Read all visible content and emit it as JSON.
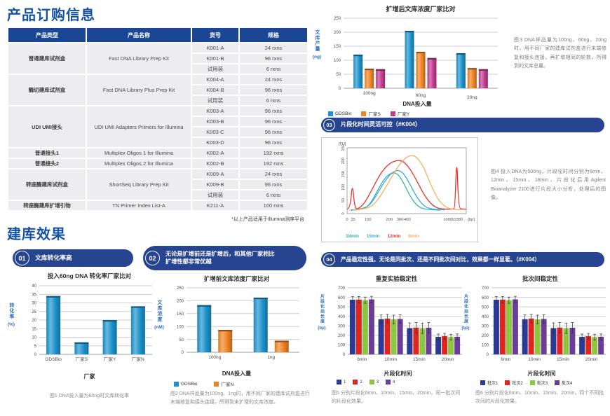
{
  "headings": {
    "ordering": "产品订购信息",
    "effect": "建库效果"
  },
  "order_table": {
    "headers": [
      "产品类型",
      "产品名称",
      "货号",
      "规格"
    ],
    "groups": [
      {
        "type": "普通建库试剂盒",
        "name": "Fast DNA Library Prep Kit",
        "items": [
          [
            "K001-A",
            "24 rxns"
          ],
          [
            "K001-B",
            "96 rxns"
          ],
          [
            "试用装",
            "6 rxns"
          ]
        ]
      },
      {
        "type": "酶切建库试剂盒",
        "name": "Fast DNA Library Plus Prep Kit",
        "items": [
          [
            "K004-A",
            "24 rxns"
          ],
          [
            "K004-B",
            "96 rxns"
          ],
          [
            "试用装",
            "6 rxns"
          ]
        ]
      },
      {
        "type": "UDI UMI接头",
        "name": "UDI UMI Adapters Primers for Illumina",
        "items": [
          [
            "K003-A",
            "96 rxns"
          ],
          [
            "K003-B",
            "96 rxns"
          ],
          [
            "K003-C",
            "96 rxns"
          ],
          [
            "K003-D",
            "96 rxns"
          ]
        ]
      },
      {
        "type": "普通接头1",
        "name": "Multiplex Oligos 1 for Illumina",
        "items": [
          [
            "K002-A",
            "192 rxns"
          ]
        ]
      },
      {
        "type": "普通接头2",
        "name": "Multiplex Oligos 2 for Illumina",
        "items": [
          [
            "K002-B",
            "192 rxns"
          ]
        ]
      },
      {
        "type": "转座酶建库试剂盒",
        "name": "ShortSeq Library Prep Kit",
        "items": [
          [
            "K009-A",
            "24 rxns"
          ],
          [
            "K009-B",
            "96 rxns"
          ],
          [
            "试用装",
            "6 rxns"
          ]
        ]
      },
      {
        "type": "转座酶建库扩增引物",
        "name": "TN Primer Index List-A",
        "items": [
          [
            "K211-A",
            "100 rxns"
          ]
        ]
      }
    ],
    "footnote": "*以上产品适用于Illumina测序平台"
  },
  "sections": {
    "s01": {
      "num": "01",
      "title": "文库转化率高"
    },
    "s02": {
      "num": "02",
      "title_line1": "无论是扩增前还是扩增后，和其他厂家相比",
      "title_line2": "扩增性都非常优越"
    },
    "s03": {
      "num": "03",
      "title": "片段化时间灵活可控（#K004）"
    },
    "s04": {
      "num": "04",
      "title": "产品稳定性强，无论是同批次、还是不同批次间对比，效果都一样显著。（#K004）"
    }
  },
  "colors": {
    "accent_blue": "#1452A4",
    "banner_navy": "#274490",
    "table_header": "#1B4693",
    "row_bg": "#EDEDEF",
    "bar_blue": "#1B92CC",
    "bar_orange": "#F08221",
    "bar_magenta": "#C23A8C",
    "series_navy": "#2B3A92",
    "series_red": "#E02521",
    "series_green": "#8DC63F",
    "series_purple": "#6B3D97",
    "line_teal": "#35B5A8",
    "line_blue": "#3FA6DC",
    "line_red": "#E8332A",
    "line_orange": "#F5B062"
  },
  "chart_data": [
    {
      "id": "fig1",
      "type": "bar",
      "title": "投入60ng DNA 转化率厂家比对",
      "categories": [
        "GDSBio",
        "厂家S",
        "厂家Y",
        "厂家N"
      ],
      "series": [
        {
          "name": "转化率",
          "color": "#1B92CC",
          "values": [
            34,
            7,
            20,
            28
          ]
        }
      ],
      "ylabel": "转化率",
      "yunit": "(%)",
      "xlabel": "厂家",
      "ylim": [
        0,
        40
      ],
      "ytick": 5,
      "caption": "图1 DNA投入量为60ng时文库转化率"
    },
    {
      "id": "fig2",
      "type": "bar",
      "title": "扩增前文库浓度厂家比对",
      "categories": [
        "100ng",
        "1ng"
      ],
      "series": [
        {
          "name": "GDSBio",
          "color": "#1B92CC",
          "values": [
            183,
            212
          ]
        },
        {
          "name": "厂家N",
          "color": "#F08221",
          "values": [
            87,
            45
          ]
        }
      ],
      "ylabel": "文库浓度",
      "yunit": "(nM)",
      "xlabel": "DNA投入量",
      "ylim": [
        0,
        250
      ],
      "ytick": 50,
      "caption": "图2 DNA样品量为100ng、1ng时，用不同厂家的建库试剂盒进行末端修复和接头连接，所得到未扩增的文库浓度。"
    },
    {
      "id": "fig3",
      "type": "bar",
      "title": "扩增后文库浓度厂家比对",
      "categories": [
        "100ng",
        "60ng",
        "20ng"
      ],
      "series": [
        {
          "name": "GDSBio",
          "color": "#1B92CC",
          "values": [
            120,
            205,
            125
          ]
        },
        {
          "name": "厂家S",
          "color": "#F08221",
          "values": [
            70,
            130,
            72
          ]
        },
        {
          "name": "厂家Y",
          "color": "#C23A8C",
          "values": [
            68,
            108,
            68
          ]
        }
      ],
      "ylabel": "文库产量",
      "yunit": "(ng)",
      "xlabel": "DNA投入量",
      "ylim": [
        0,
        250
      ],
      "ytick": 50,
      "caption": "图3 DNA样品量为100ng、60ng、20ng时，用不同厂家的建库试剂盒进行末端修复和接头连接，再扩增相同的轮数，所得到的文库总量。"
    },
    {
      "id": "fig4",
      "type": "line",
      "title": "",
      "ylabel": "[FU]",
      "xunit": "[bp]",
      "ylim": [
        0,
        250
      ],
      "ytick": 50,
      "xticks": [
        {
          "label": "0",
          "f": 0.0
        },
        {
          "label": "35",
          "f": 0.05
        },
        {
          "label": "100",
          "f": 0.175
        },
        {
          "label": "200",
          "f": 0.355
        },
        {
          "label": "300",
          "f": 0.445
        },
        {
          "label": "400",
          "f": 0.505
        },
        {
          "label": "1000",
          "f": 0.845
        },
        {
          "label": "10380",
          "f": 0.925
        }
      ],
      "series": [
        {
          "name": "18min",
          "color": "#35B5A8",
          "points": [
            [
              0.03,
              13
            ],
            [
              0.14,
              15
            ],
            [
              0.2,
              40
            ],
            [
              0.26,
              92
            ],
            [
              0.32,
              138
            ],
            [
              0.38,
              157
            ],
            [
              0.43,
              150
            ],
            [
              0.48,
              112
            ],
            [
              0.53,
              64
            ],
            [
              0.59,
              28
            ],
            [
              0.65,
              16
            ],
            [
              0.78,
              13
            ]
          ]
        },
        {
          "name": "15min",
          "color": "#3FA6DC",
          "points": [
            [
              0.03,
              14
            ],
            [
              0.15,
              17
            ],
            [
              0.22,
              48
            ],
            [
              0.29,
              105
            ],
            [
              0.36,
              150
            ],
            [
              0.42,
              167
            ],
            [
              0.47,
              156
            ],
            [
              0.52,
              118
            ],
            [
              0.58,
              66
            ],
            [
              0.64,
              30
            ],
            [
              0.7,
              17
            ],
            [
              0.82,
              14
            ]
          ]
        },
        {
          "name": "12min",
          "color": "#E8332A",
          "points": [
            [
              0.0,
              17
            ],
            [
              0.025,
              17
            ],
            [
              0.045,
              123
            ],
            [
              0.065,
              17
            ],
            [
              0.1,
              19
            ],
            [
              0.15,
              42
            ],
            [
              0.21,
              92
            ],
            [
              0.28,
              152
            ],
            [
              0.35,
              190
            ],
            [
              0.42,
              203
            ],
            [
              0.47,
              200
            ],
            [
              0.53,
              170
            ],
            [
              0.59,
              120
            ],
            [
              0.65,
              68
            ],
            [
              0.71,
              34
            ],
            [
              0.76,
              20
            ],
            [
              0.82,
              17
            ],
            [
              0.89,
              17
            ],
            [
              0.905,
              20
            ],
            [
              0.92,
              228
            ],
            [
              0.935,
              20
            ],
            [
              0.97,
              17
            ],
            [
              1.0,
              17
            ]
          ]
        },
        {
          "name": "8min",
          "color": "#F5B062",
          "points": [
            [
              0.05,
              14
            ],
            [
              0.16,
              16
            ],
            [
              0.24,
              40
            ],
            [
              0.32,
              95
            ],
            [
              0.4,
              160
            ],
            [
              0.47,
              205
            ],
            [
              0.53,
              222
            ],
            [
              0.58,
              218
            ],
            [
              0.64,
              180
            ],
            [
              0.7,
              112
            ],
            [
              0.76,
              55
            ],
            [
              0.82,
              26
            ],
            [
              0.88,
              16
            ],
            [
              0.96,
              14
            ]
          ]
        }
      ],
      "caption": "图4 投入DNA为500ng，片段化时间分别为8min、12min、15min、18min，片段化后用Agilent Bioanalyzer 2100进行片段大小分析，处理后的图像。"
    },
    {
      "id": "fig5",
      "type": "bar",
      "title": "重复实验稳定性",
      "categories": [
        "6min",
        "10min",
        "15min",
        "20min"
      ],
      "series": [
        {
          "name": "1",
          "color": "#2B3A92",
          "values": [
            575,
            370,
            276,
            184
          ]
        },
        {
          "name": "2",
          "color": "#E02521",
          "values": [
            576,
            376,
            281,
            191
          ]
        },
        {
          "name": "3",
          "color": "#8DC63F",
          "values": [
            570,
            368,
            275,
            182
          ]
        },
        {
          "name": "4",
          "color": "#6B3D97",
          "values": [
            578,
            372,
            280,
            185
          ]
        }
      ],
      "errors": [
        33,
        45,
        55,
        30
      ],
      "ylabel": "片段化后长度",
      "yunit": "(bp)",
      "xlabel": "片段化时间",
      "ylim": [
        0,
        700
      ],
      "ytick": 100,
      "caption": "图5 分别片段化6min、10min、15min、20min，同一批次间的片段化效果。"
    },
    {
      "id": "fig6",
      "type": "bar",
      "title": "批次间稳定性",
      "categories": [
        "6min",
        "10min",
        "15min",
        "20min"
      ],
      "series": [
        {
          "name": "批次1",
          "color": "#2B3A92",
          "values": [
            575,
            370,
            276,
            184
          ]
        },
        {
          "name": "批次2",
          "color": "#E02521",
          "values": [
            576,
            376,
            281,
            191
          ]
        },
        {
          "name": "批次3",
          "color": "#8DC63F",
          "values": [
            570,
            368,
            275,
            182
          ]
        },
        {
          "name": "批次4",
          "color": "#6B3D97",
          "values": [
            578,
            372,
            280,
            185
          ]
        }
      ],
      "errors": [
        33,
        45,
        55,
        30
      ],
      "ylabel": "片段化后长度",
      "yunit": "(bp)",
      "xlabel": "片段化时间",
      "ylim": [
        0,
        700
      ],
      "ytick": 100,
      "caption": "图6 分别片段化6min、10min、15min、20min，四个不同批次间的片段化效果。"
    }
  ]
}
